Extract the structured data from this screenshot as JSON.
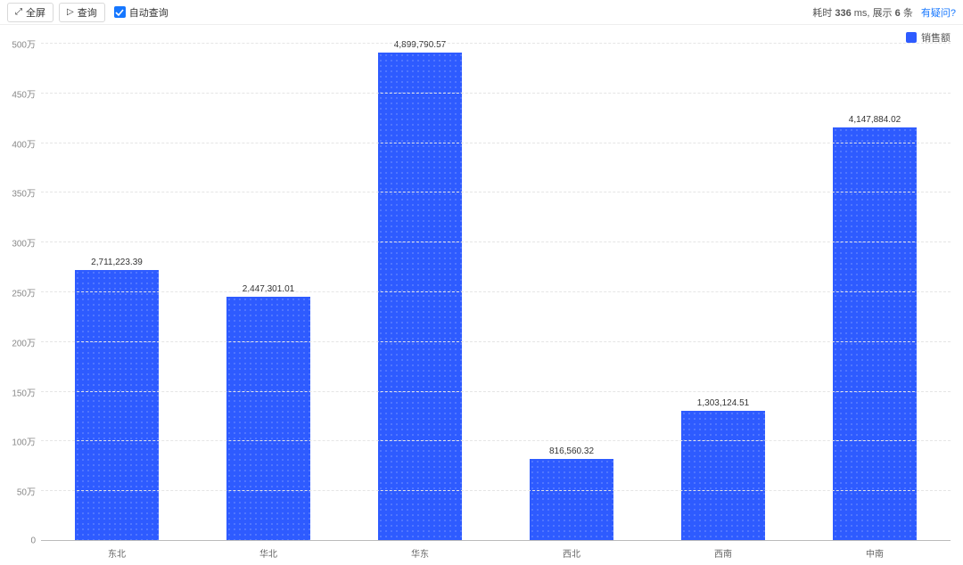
{
  "toolbar": {
    "fullscreen_label": "全屏",
    "query_label": "查询",
    "auto_query_label": "自动查询",
    "auto_query_checked": true
  },
  "status": {
    "prefix": "耗时",
    "ms_value": "336",
    "ms_unit": "ms,",
    "show_prefix": "展示",
    "row_count": "6",
    "row_unit": "条",
    "help_link": "有疑问?"
  },
  "legend": {
    "label": "销售额",
    "color": "#2e5bff"
  },
  "chart": {
    "type": "bar",
    "y_max": 5000000,
    "y_ticks": [
      {
        "v": 0,
        "label": "0"
      },
      {
        "v": 500000,
        "label": "50万"
      },
      {
        "v": 1000000,
        "label": "100万"
      },
      {
        "v": 1500000,
        "label": "150万"
      },
      {
        "v": 2000000,
        "label": "200万"
      },
      {
        "v": 2500000,
        "label": "250万"
      },
      {
        "v": 3000000,
        "label": "300万"
      },
      {
        "v": 3500000,
        "label": "350万"
      },
      {
        "v": 4000000,
        "label": "400万"
      },
      {
        "v": 4500000,
        "label": "450万"
      },
      {
        "v": 5000000,
        "label": "500万"
      }
    ],
    "categories": [
      "东北",
      "华北",
      "华东",
      "西北",
      "西南",
      "中南"
    ],
    "values": [
      2711223.39,
      2447301.01,
      4899790.57,
      816560.32,
      1303124.51,
      4147884.02
    ],
    "value_labels": [
      "2,711,223.39",
      "2,447,301.01",
      "4,899,790.57",
      "816,560.32",
      "1,303,124.51",
      "4,147,884.02"
    ],
    "bar_color": "#2e5bff",
    "bar_width_pct": 55,
    "grid_color": "#e5e5e5",
    "axis_color": "#bbbbbb",
    "label_fontsize": 10,
    "background_color": "#ffffff"
  }
}
